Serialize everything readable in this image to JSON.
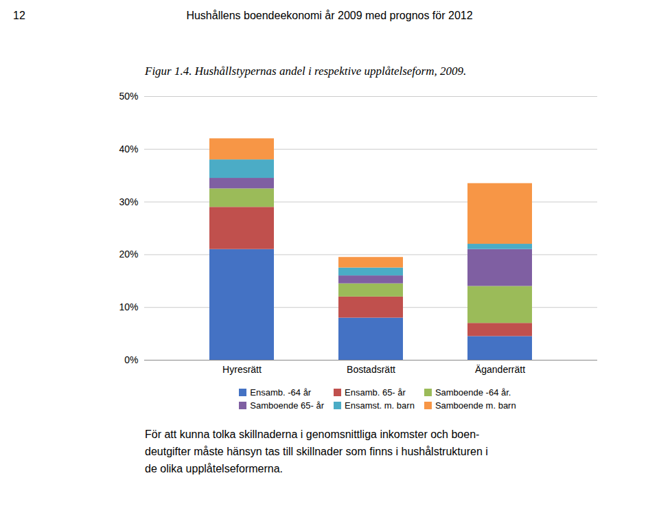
{
  "chart_data": {
    "type": "bar",
    "stacked": true,
    "title": "Hushållens boendeekonomi år 2009 med prognos för 2012",
    "subtitle": "Figur 1.4. Hushållstypernas andel i respektive upplåtelseform, 2009.",
    "annotations": [
      "12",
      "För att kunna tolka skillnaderna i genomsnittliga inkomster och boen-",
      "deutgifter måste hänsyn tas till skillnader som finns i hushålstrukturen i",
      "de olika upplåtelseformerna."
    ],
    "categories": [
      "Hyresrätt",
      "Bostadsrätt",
      "Äganderrätt"
    ],
    "series": [
      {
        "name": "Ensamb. -64 år",
        "color": "#4472C4",
        "values": [
          21.0,
          8.0,
          4.5
        ]
      },
      {
        "name": "Ensamb. 65- år",
        "color": "#C0504D",
        "values": [
          8.0,
          4.0,
          2.5
        ]
      },
      {
        "name": "Samboende -64 år.",
        "color": "#9BBB59",
        "values": [
          3.5,
          2.5,
          7.0
        ]
      },
      {
        "name": "Samboende 65- år",
        "color": "#7F5FA2",
        "values": [
          2.0,
          1.5,
          7.0
        ]
      },
      {
        "name": "Ensamst. m. barn",
        "color": "#4BACC6",
        "values": [
          3.5,
          1.5,
          1.0
        ]
      },
      {
        "name": "Samboende m. barn",
        "color": "#F79646",
        "values": [
          4.0,
          2.0,
          11.5
        ]
      }
    ],
    "ylim": [
      0,
      50
    ],
    "yticks": [
      {
        "value": 0,
        "label": "0%"
      },
      {
        "value": 10,
        "label": "10%"
      },
      {
        "value": 20,
        "label": "20%"
      },
      {
        "value": 30,
        "label": "30%"
      },
      {
        "value": 40,
        "label": "40%"
      },
      {
        "value": 50,
        "label": "50%"
      }
    ],
    "grid": true,
    "legend": "bottom"
  }
}
